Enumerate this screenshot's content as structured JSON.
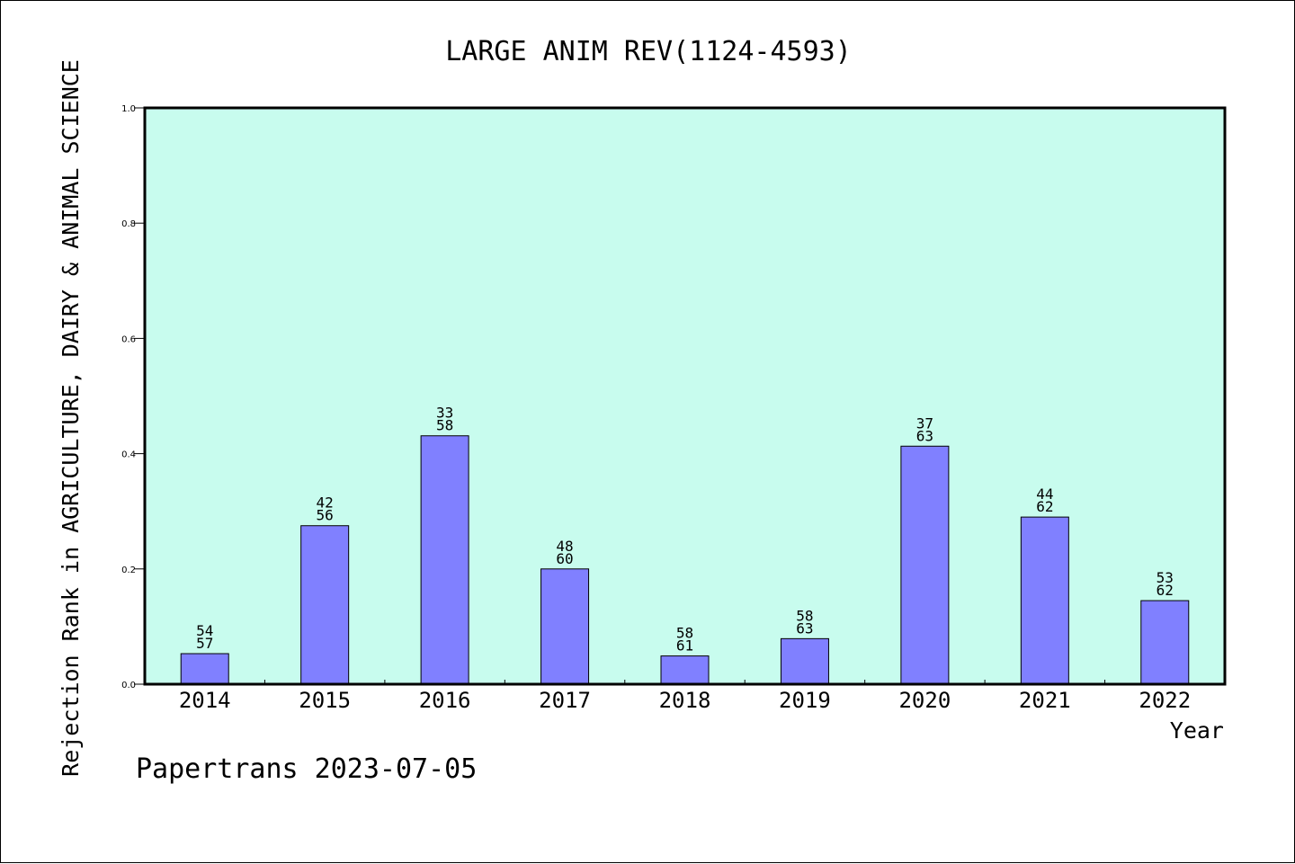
{
  "chart_data": {
    "type": "bar",
    "title": "LARGE ANIM REV(1124-4593)",
    "ylabel": "Rejection Rank in AGRICULTURE, DAIRY & ANIMAL SCIENCE",
    "xlabel": "Year",
    "footer": "Papertrans 2023-07-05",
    "ylim": [
      0,
      1.0
    ],
    "yticks": [
      "0.0",
      "0.2",
      "0.4",
      "0.6",
      "0.8",
      "1.0"
    ],
    "categories": [
      "2014",
      "2015",
      "2016",
      "2017",
      "2018",
      "2019",
      "2020",
      "2021",
      "2022"
    ],
    "values": [
      0.053,
      0.275,
      0.431,
      0.2,
      0.049,
      0.079,
      0.413,
      0.29,
      0.145
    ],
    "rank": [
      "54",
      "42",
      "33",
      "48",
      "58",
      "58",
      "37",
      "44",
      "53"
    ],
    "total": [
      "57",
      "56",
      "58",
      "60",
      "61",
      "63",
      "63",
      "62",
      "62"
    ],
    "grid": false,
    "legend": "none",
    "colors": {
      "plot_background": "#c8fcee",
      "bar_fill": "#8080ff",
      "bar_stroke": "#000000",
      "axis": "#000000"
    }
  }
}
